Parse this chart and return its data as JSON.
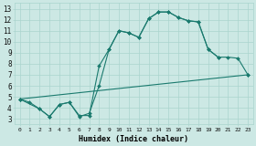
{
  "xlabel": "Humidex (Indice chaleur)",
  "bg_color": "#cce8e4",
  "line_color": "#1a7a6e",
  "grid_color": "#aad4ce",
  "xlim": [
    -0.5,
    23.5
  ],
  "ylim": [
    2.5,
    13.5
  ],
  "line1_x": [
    0,
    1,
    2,
    3,
    4,
    5,
    6,
    7,
    8,
    9,
    10,
    11,
    12,
    13,
    14,
    15,
    16,
    17,
    18,
    19,
    20
  ],
  "line1_y": [
    4.8,
    4.5,
    3.9,
    3.2,
    4.3,
    4.5,
    3.3,
    3.3,
    7.8,
    9.3,
    11.0,
    10.8,
    10.4,
    12.1,
    12.7,
    12.7,
    12.2,
    11.9,
    11.8,
    9.3,
    8.6
  ],
  "line2_x": [
    0,
    2,
    3,
    4,
    5,
    6,
    7,
    8,
    9,
    10,
    11,
    12,
    13,
    14,
    15,
    16,
    17,
    18,
    19,
    20,
    21,
    22,
    23
  ],
  "line2_y": [
    4.8,
    3.9,
    3.2,
    4.3,
    4.5,
    3.2,
    3.5,
    6.0,
    9.3,
    11.0,
    10.8,
    10.4,
    12.1,
    12.7,
    12.7,
    12.2,
    11.9,
    11.8,
    9.3,
    8.6,
    8.6,
    8.5,
    7.0
  ],
  "line3_x": [
    0,
    23
  ],
  "line3_y": [
    4.8,
    7.0
  ]
}
